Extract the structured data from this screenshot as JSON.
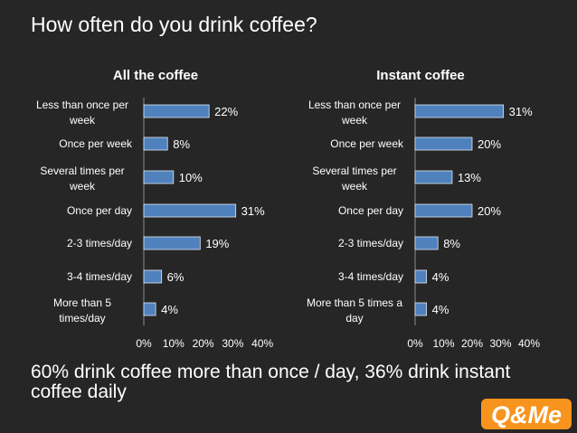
{
  "page": {
    "title": "How often do you drink coffee?"
  },
  "summary": "60% drink coffee more than once / day, 36% drink instant coffee daily",
  "colors": {
    "background": "#262626",
    "bar": "#4F81BD",
    "text": "#ffffff",
    "logo_orange": "#F7941D"
  },
  "logo": {
    "text": "Q&Me"
  },
  "chart_data": [
    {
      "type": "bar",
      "orientation": "horizontal",
      "title": "All the coffee",
      "categories": [
        [
          "Less than once per",
          "week"
        ],
        [
          "Once per week"
        ],
        [
          "Several times per",
          "week"
        ],
        [
          "Once per day"
        ],
        [
          "2-3 times/day"
        ],
        [
          "3-4 times/day"
        ],
        [
          "More than 5",
          "times/day"
        ]
      ],
      "values": [
        22,
        8,
        10,
        31,
        19,
        6,
        4
      ],
      "value_labels": [
        "22%",
        "8%",
        "10%",
        "31%",
        "19%",
        "6%",
        "4%"
      ],
      "xlim": [
        0,
        40
      ],
      "xticks": [
        "0%",
        "10%",
        "20%",
        "30%",
        "40%"
      ],
      "grid": false
    },
    {
      "type": "bar",
      "orientation": "horizontal",
      "title": "Instant coffee",
      "categories": [
        [
          "Less than once per",
          "week"
        ],
        [
          "Once per week"
        ],
        [
          "Several times per",
          "week"
        ],
        [
          "Once per day"
        ],
        [
          "2-3 times/day"
        ],
        [
          "3-4 times/day"
        ],
        [
          "More than 5 times a",
          "day"
        ]
      ],
      "values": [
        31,
        20,
        13,
        20,
        8,
        4,
        4
      ],
      "value_labels": [
        "31%",
        "20%",
        "13%",
        "20%",
        "8%",
        "4%",
        "4%"
      ],
      "xlim": [
        0,
        40
      ],
      "xticks": [
        "0%",
        "10%",
        "20%",
        "30%",
        "40%"
      ],
      "grid": false
    }
  ]
}
